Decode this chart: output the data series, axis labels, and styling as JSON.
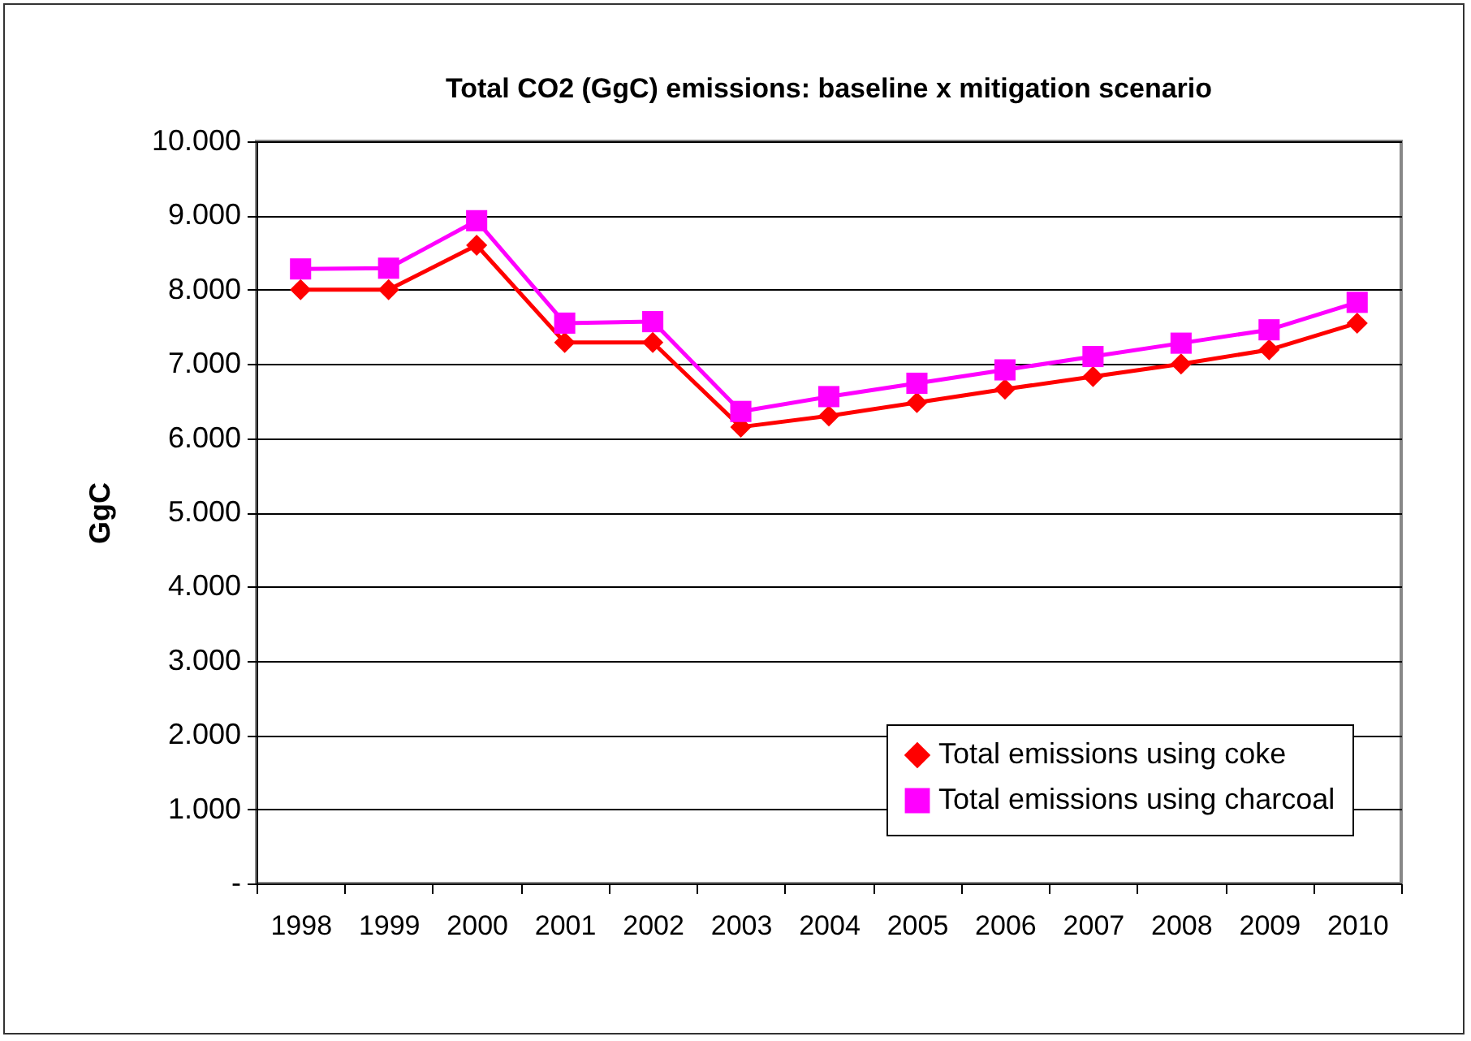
{
  "chart_data": {
    "type": "line",
    "title": "Total CO2 (GgC) emissions: baseline x mitigation scenario",
    "ylabel": "GgC",
    "categories": [
      "1998",
      "1999",
      "2000",
      "2001",
      "2002",
      "2003",
      "2004",
      "2005",
      "2006",
      "2007",
      "2008",
      "2009",
      "2010"
    ],
    "series": [
      {
        "name": "Total emissions using coke",
        "color": "#ff0000",
        "marker": "diamond",
        "values": [
          8000,
          8000,
          8600,
          7290,
          7290,
          6150,
          6300,
          6480,
          6660,
          6830,
          7000,
          7190,
          7550
        ]
      },
      {
        "name": "Total emissions using charcoal",
        "color": "#ff00ff",
        "marker": "square",
        "values": [
          8280,
          8290,
          8930,
          7550,
          7570,
          6360,
          6560,
          6740,
          6920,
          7100,
          7280,
          7460,
          7830
        ]
      }
    ],
    "ylim": [
      0,
      10000
    ],
    "yticks": [
      {
        "value": 0,
        "label": "-"
      },
      {
        "value": 1000,
        "label": "1.000"
      },
      {
        "value": 2000,
        "label": "2.000"
      },
      {
        "value": 3000,
        "label": "3.000"
      },
      {
        "value": 4000,
        "label": "4.000"
      },
      {
        "value": 5000,
        "label": "5.000"
      },
      {
        "value": 6000,
        "label": "6.000"
      },
      {
        "value": 7000,
        "label": "7.000"
      },
      {
        "value": 8000,
        "label": "8.000"
      },
      {
        "value": 9000,
        "label": "9.000"
      },
      {
        "value": 10000,
        "label": "10.000"
      }
    ],
    "grid": "y",
    "legend": "bottom right"
  }
}
